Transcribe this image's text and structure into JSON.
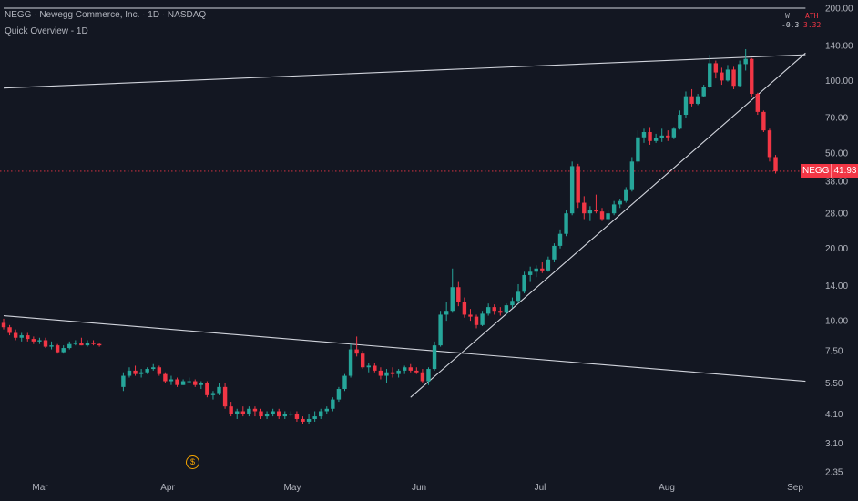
{
  "header": {
    "title": "NEGG · Newegg Commerce, Inc. · 1D · NASDAQ",
    "subtitle": "Quick Overview - 1D"
  },
  "corner": {
    "left_top": "W",
    "left_bottom": "-0.3",
    "right_top": "ATH",
    "right_bottom": "3.32"
  },
  "price_badge": {
    "symbol": "NEGG",
    "value": "41.93"
  },
  "dividend_marker": "$",
  "colors": {
    "background": "#131722",
    "up": "#26a69a",
    "down": "#f23645",
    "line": "#d1d4dc",
    "price_line": "#f23645",
    "marker": "#f7a600"
  },
  "chart_data": {
    "type": "candlestick",
    "title": "NEGG · Newegg Commerce, Inc. · 1D · NASDAQ",
    "yscale": "log",
    "ylim": [
      2.35,
      200
    ],
    "y_ticks": [
      200.0,
      140.0,
      100.0,
      70.0,
      50.0,
      38.0,
      28.0,
      20.0,
      14.0,
      10.0,
      7.5,
      5.5,
      4.1,
      3.1,
      2.35
    ],
    "y_tick_labels": [
      "200.00",
      "140.00",
      "100.00",
      "70.00",
      "50.00",
      "38.00",
      "28.00",
      "20.00",
      "14.00",
      "10.00",
      "7.50",
      "5.50",
      "4.10",
      "3.10",
      "2.35"
    ],
    "x_labels": [
      "Mar",
      "Apr",
      "May",
      "Jun",
      "Jul",
      "Aug",
      "Sep"
    ],
    "last_price": 41.93,
    "grid": false,
    "candles": [
      [
        9.8,
        10.2,
        9.2,
        9.4
      ],
      [
        9.4,
        9.6,
        8.7,
        8.9
      ],
      [
        8.9,
        9.2,
        8.3,
        8.5
      ],
      [
        8.5,
        8.9,
        8.2,
        8.7
      ],
      [
        8.7,
        8.9,
        8.2,
        8.4
      ],
      [
        8.4,
        8.6,
        8.0,
        8.2
      ],
      [
        8.2,
        8.5,
        8.0,
        8.3
      ],
      [
        8.3,
        8.5,
        7.7,
        7.8
      ],
      [
        7.8,
        8.2,
        7.6,
        7.9
      ],
      [
        7.9,
        8.0,
        7.3,
        7.4
      ],
      [
        7.4,
        7.9,
        7.3,
        7.7
      ],
      [
        7.7,
        8.2,
        7.6,
        8.0
      ],
      [
        8.0,
        8.3,
        7.9,
        8.1
      ],
      [
        8.1,
        8.5,
        7.9,
        7.9
      ],
      [
        7.9,
        8.3,
        7.8,
        8.1
      ],
      [
        8.1,
        8.3,
        7.9,
        8.0
      ],
      [
        8.0,
        8.1,
        7.8,
        7.9
      ],
      [
        null,
        null,
        null,
        null
      ],
      [
        null,
        null,
        null,
        null
      ],
      [
        null,
        null,
        null,
        null
      ],
      [
        5.3,
        6.1,
        5.1,
        5.9
      ],
      [
        5.9,
        6.4,
        5.8,
        6.2
      ],
      [
        6.2,
        6.5,
        5.9,
        6.0
      ],
      [
        6.0,
        6.3,
        5.8,
        6.1
      ],
      [
        6.1,
        6.4,
        6.0,
        6.3
      ],
      [
        6.3,
        6.6,
        6.2,
        6.4
      ],
      [
        6.4,
        6.5,
        5.9,
        6.0
      ],
      [
        6.0,
        6.1,
        5.5,
        5.6
      ],
      [
        5.6,
        5.9,
        5.4,
        5.7
      ],
      [
        5.7,
        5.8,
        5.3,
        5.4
      ],
      [
        5.4,
        5.7,
        5.4,
        5.6
      ],
      [
        5.6,
        5.8,
        5.5,
        5.6
      ],
      [
        5.6,
        5.7,
        5.3,
        5.4
      ],
      [
        5.4,
        5.6,
        5.2,
        5.5
      ],
      [
        5.5,
        5.6,
        4.8,
        4.9
      ],
      [
        4.9,
        5.1,
        4.7,
        5.0
      ],
      [
        5.0,
        5.5,
        4.9,
        5.3
      ],
      [
        5.3,
        5.5,
        4.3,
        4.4
      ],
      [
        4.4,
        4.6,
        4.0,
        4.1
      ],
      [
        4.1,
        4.3,
        3.9,
        4.2
      ],
      [
        4.2,
        4.4,
        4.0,
        4.1
      ],
      [
        4.1,
        4.4,
        4.0,
        4.3
      ],
      [
        4.3,
        4.4,
        4.0,
        4.2
      ],
      [
        4.2,
        4.3,
        3.9,
        4.0
      ],
      [
        4.0,
        4.2,
        3.9,
        4.1
      ],
      [
        4.1,
        4.3,
        4.0,
        4.2
      ],
      [
        4.2,
        4.3,
        3.9,
        4.0
      ],
      [
        4.0,
        4.2,
        3.9,
        4.1
      ],
      [
        4.1,
        4.2,
        4.0,
        4.1
      ],
      [
        4.1,
        4.2,
        3.8,
        3.9
      ],
      [
        3.9,
        4.0,
        3.7,
        3.8
      ],
      [
        3.8,
        4.1,
        3.7,
        3.9
      ],
      [
        3.9,
        4.2,
        3.8,
        4.0
      ],
      [
        4.0,
        4.3,
        3.9,
        4.2
      ],
      [
        4.2,
        4.4,
        4.1,
        4.3
      ],
      [
        4.3,
        4.8,
        4.2,
        4.7
      ],
      [
        4.7,
        5.3,
        4.6,
        5.2
      ],
      [
        5.2,
        6.0,
        5.1,
        5.9
      ],
      [
        5.9,
        8.0,
        5.8,
        7.6
      ],
      [
        7.6,
        8.6,
        7.1,
        7.3
      ],
      [
        7.3,
        7.5,
        6.3,
        6.4
      ],
      [
        6.4,
        6.7,
        6.1,
        6.5
      ],
      [
        6.5,
        6.7,
        6.1,
        6.2
      ],
      [
        6.2,
        6.4,
        5.7,
        5.9
      ],
      [
        5.9,
        6.3,
        5.5,
        6.1
      ],
      [
        6.1,
        6.4,
        5.8,
        6.0
      ],
      [
        6.0,
        6.3,
        5.8,
        6.2
      ],
      [
        6.2,
        6.5,
        6.0,
        6.4
      ],
      [
        6.4,
        6.6,
        6.1,
        6.2
      ],
      [
        6.2,
        6.4,
        6.0,
        6.1
      ],
      [
        6.1,
        6.3,
        5.5,
        5.6
      ],
      [
        5.6,
        6.4,
        5.4,
        6.3
      ],
      [
        6.3,
        8.2,
        6.2,
        7.9
      ],
      [
        7.9,
        11.0,
        7.8,
        10.6
      ],
      [
        10.6,
        12.0,
        10.0,
        11.0
      ],
      [
        11.0,
        16.5,
        10.8,
        13.8
      ],
      [
        13.8,
        14.5,
        11.5,
        12.0
      ],
      [
        12.0,
        12.5,
        10.3,
        10.6
      ],
      [
        10.6,
        11.2,
        10.0,
        10.4
      ],
      [
        10.4,
        10.6,
        9.3,
        9.6
      ],
      [
        9.6,
        11.0,
        9.5,
        10.7
      ],
      [
        10.7,
        11.8,
        10.5,
        11.4
      ],
      [
        11.4,
        11.7,
        10.6,
        11.0
      ],
      [
        11.0,
        11.4,
        10.5,
        10.8
      ],
      [
        10.8,
        11.8,
        10.6,
        11.6
      ],
      [
        11.6,
        12.5,
        11.3,
        12.1
      ],
      [
        12.1,
        14.2,
        11.8,
        13.2
      ],
      [
        13.2,
        16.0,
        13.0,
        15.5
      ],
      [
        15.5,
        16.8,
        14.5,
        16.0
      ],
      [
        16.0,
        17.0,
        15.2,
        16.5
      ],
      [
        16.5,
        17.5,
        15.8,
        16.2
      ],
      [
        16.2,
        18.5,
        16.0,
        18.0
      ],
      [
        18.0,
        21.0,
        17.5,
        20.5
      ],
      [
        20.5,
        24.0,
        20.0,
        23.0
      ],
      [
        23.0,
        29.0,
        22.5,
        28.0
      ],
      [
        28.0,
        46.0,
        27.5,
        44.0
      ],
      [
        44.0,
        45.0,
        29.5,
        31.0
      ],
      [
        31.0,
        33.0,
        26.5,
        28.0
      ],
      [
        28.0,
        30.0,
        26.0,
        29.0
      ],
      [
        29.0,
        33.5,
        28.0,
        28.5
      ],
      [
        28.5,
        29.5,
        26.0,
        26.5
      ],
      [
        26.5,
        29.0,
        25.8,
        28.0
      ],
      [
        28.0,
        31.5,
        27.5,
        30.5
      ],
      [
        30.5,
        32.0,
        29.5,
        31.5
      ],
      [
        31.5,
        36.0,
        31.0,
        35.0
      ],
      [
        35.0,
        48.0,
        34.5,
        46.0
      ],
      [
        46.0,
        62.0,
        45.0,
        58.0
      ],
      [
        58.0,
        63.0,
        55.0,
        61.0
      ],
      [
        61.0,
        64.0,
        54.0,
        56.0
      ],
      [
        56.0,
        60.0,
        55.0,
        57.5
      ],
      [
        57.5,
        63.0,
        55.5,
        59.0
      ],
      [
        59.0,
        62.0,
        56.0,
        58.0
      ],
      [
        58.0,
        64.0,
        57.0,
        63.0
      ],
      [
        63.0,
        75.0,
        62.5,
        72.0
      ],
      [
        72.0,
        90.0,
        70.0,
        86.0
      ],
      [
        86.0,
        92.0,
        78.0,
        80.0
      ],
      [
        80.0,
        88.0,
        79.0,
        86.0
      ],
      [
        86.0,
        96.0,
        85.0,
        94.0
      ],
      [
        94.0,
        128.0,
        93.0,
        118.0
      ],
      [
        118.0,
        121.0,
        102.0,
        108.0
      ],
      [
        108.0,
        113.0,
        96.0,
        100.0
      ],
      [
        100.0,
        116.0,
        99.0,
        111.0
      ],
      [
        111.0,
        114.0,
        92.0,
        95.0
      ],
      [
        95.0,
        121.0,
        94.0,
        117.0
      ],
      [
        117.0,
        135.0,
        110.0,
        123.0
      ],
      [
        123.0,
        124.0,
        85.0,
        88.0
      ],
      [
        88.0,
        89.0,
        72.0,
        74.0
      ],
      [
        74.0,
        75.0,
        61.0,
        62.0
      ],
      [
        62.0,
        63.0,
        46.0,
        48.0
      ],
      [
        48.0,
        49.0,
        41.0,
        41.93
      ]
    ],
    "trendlines": [
      {
        "x": [
          0,
          134
        ],
        "y": [
          93.0,
          128.0
        ]
      },
      {
        "x": [
          0,
          134
        ],
        "y": [
          10.5,
          5.6
        ]
      },
      {
        "x": [
          68,
          134
        ],
        "y": [
          4.8,
          130.0
        ]
      },
      {
        "x": [
          0,
          134
        ],
        "y": [
          200.0,
          200.0
        ]
      }
    ]
  }
}
